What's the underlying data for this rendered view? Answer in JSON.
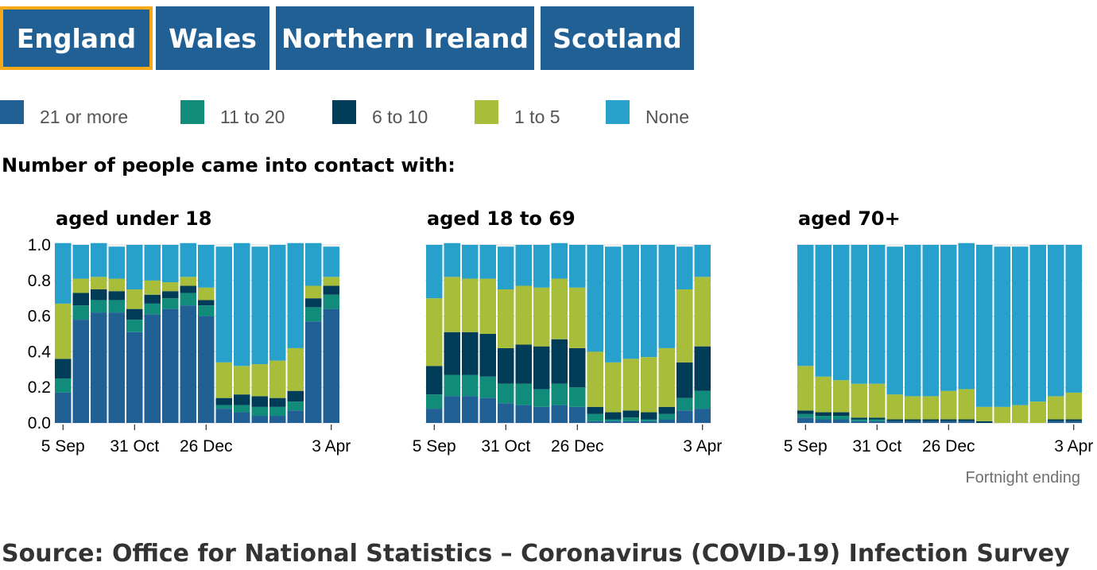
{
  "tabs": [
    {
      "label": "England",
      "active": true
    },
    {
      "label": "Wales",
      "active": false
    },
    {
      "label": "Northern Ireland",
      "active": false
    },
    {
      "label": "Scotland",
      "active": false
    }
  ],
  "legend": [
    {
      "label": "21 or more",
      "color": "#206095"
    },
    {
      "label": "11 to 20",
      "color": "#118c7b"
    },
    {
      "label": "6 to 10",
      "color": "#003c57"
    },
    {
      "label": "1 to 5",
      "color": "#a8bd3a"
    },
    {
      "label": "None",
      "color": "#27a0cc"
    }
  ],
  "subtitle": "Number of people came into contact with:",
  "source": "Source: Office for National Statistics – Coronavirus (COVID-19) Infection Survey",
  "chart_data": {
    "type": "bar",
    "stacked": true,
    "x_tick_labels": [
      "5 Sep",
      "31 Oct",
      "26 Dec",
      "3 Apr"
    ],
    "x_tick_indices": [
      0,
      4,
      8,
      15
    ],
    "y_ticks": [
      "1.0",
      "0.8",
      "0.6",
      "0.4",
      "0.2",
      "0.0"
    ],
    "ylim": [
      0,
      1
    ],
    "x_note": "Fortnight ending",
    "grid": "horizontal",
    "series_names": [
      "21 or more",
      "11 to 20",
      "6 to 10",
      "1 to 5",
      "None"
    ],
    "panels": [
      {
        "title": "aged under 18",
        "values": [
          [
            0.17,
            0.08,
            0.11,
            0.31,
            0.34
          ],
          [
            0.58,
            0.08,
            0.07,
            0.08,
            0.19
          ],
          [
            0.62,
            0.07,
            0.06,
            0.07,
            0.19
          ],
          [
            0.62,
            0.07,
            0.05,
            0.07,
            0.18
          ],
          [
            0.51,
            0.07,
            0.06,
            0.11,
            0.25
          ],
          [
            0.61,
            0.06,
            0.05,
            0.08,
            0.2
          ],
          [
            0.64,
            0.06,
            0.04,
            0.05,
            0.21
          ],
          [
            0.66,
            0.07,
            0.04,
            0.05,
            0.19
          ],
          [
            0.6,
            0.06,
            0.03,
            0.07,
            0.24
          ],
          [
            0.08,
            0.02,
            0.04,
            0.2,
            0.65
          ],
          [
            0.06,
            0.04,
            0.06,
            0.16,
            0.69
          ],
          [
            0.04,
            0.05,
            0.06,
            0.18,
            0.66
          ],
          [
            0.04,
            0.05,
            0.05,
            0.21,
            0.65
          ],
          [
            0.07,
            0.05,
            0.06,
            0.24,
            0.59
          ],
          [
            0.57,
            0.08,
            0.05,
            0.07,
            0.24
          ],
          [
            0.64,
            0.08,
            0.05,
            0.05,
            0.17
          ]
        ]
      },
      {
        "title": "aged 18 to 69",
        "values": [
          [
            0.08,
            0.08,
            0.16,
            0.38,
            0.3
          ],
          [
            0.15,
            0.12,
            0.24,
            0.31,
            0.19
          ],
          [
            0.15,
            0.12,
            0.24,
            0.3,
            0.19
          ],
          [
            0.14,
            0.12,
            0.24,
            0.31,
            0.19
          ],
          [
            0.11,
            0.11,
            0.2,
            0.33,
            0.24
          ],
          [
            0.1,
            0.12,
            0.22,
            0.33,
            0.23
          ],
          [
            0.09,
            0.1,
            0.24,
            0.33,
            0.24
          ],
          [
            0.1,
            0.12,
            0.25,
            0.34,
            0.2
          ],
          [
            0.09,
            0.11,
            0.22,
            0.34,
            0.24
          ],
          [
            0.01,
            0.04,
            0.04,
            0.31,
            0.6
          ],
          [
            0.01,
            0.01,
            0.04,
            0.28,
            0.65
          ],
          [
            0.01,
            0.02,
            0.04,
            0.29,
            0.64
          ],
          [
            0.01,
            0.01,
            0.04,
            0.31,
            0.63
          ],
          [
            0.02,
            0.03,
            0.04,
            0.33,
            0.58
          ],
          [
            0.07,
            0.07,
            0.2,
            0.41,
            0.24
          ],
          [
            0.08,
            0.1,
            0.25,
            0.39,
            0.18
          ]
        ]
      },
      {
        "title": "aged 70+",
        "values": [
          [
            0.03,
            0.02,
            0.02,
            0.25,
            0.68
          ],
          [
            0.02,
            0.02,
            0.02,
            0.2,
            0.74
          ],
          [
            0.02,
            0.02,
            0.02,
            0.18,
            0.76
          ],
          [
            0.01,
            0.01,
            0.01,
            0.19,
            0.78
          ],
          [
            0.01,
            0.01,
            0.01,
            0.19,
            0.78
          ],
          [
            0.01,
            0.0,
            0.01,
            0.14,
            0.83
          ],
          [
            0.01,
            0.0,
            0.01,
            0.13,
            0.85
          ],
          [
            0.01,
            0.0,
            0.01,
            0.13,
            0.85
          ],
          [
            0.01,
            0.0,
            0.01,
            0.16,
            0.82
          ],
          [
            0.01,
            0.0,
            0.01,
            0.17,
            0.82
          ],
          [
            0.0,
            0.0,
            0.01,
            0.08,
            0.91
          ],
          [
            0.0,
            0.0,
            0.0,
            0.09,
            0.9
          ],
          [
            0.0,
            0.0,
            0.0,
            0.1,
            0.89
          ],
          [
            0.0,
            0.0,
            0.0,
            0.12,
            0.88
          ],
          [
            0.01,
            0.0,
            0.01,
            0.13,
            0.85
          ],
          [
            0.01,
            0.0,
            0.01,
            0.15,
            0.83
          ]
        ]
      }
    ]
  }
}
